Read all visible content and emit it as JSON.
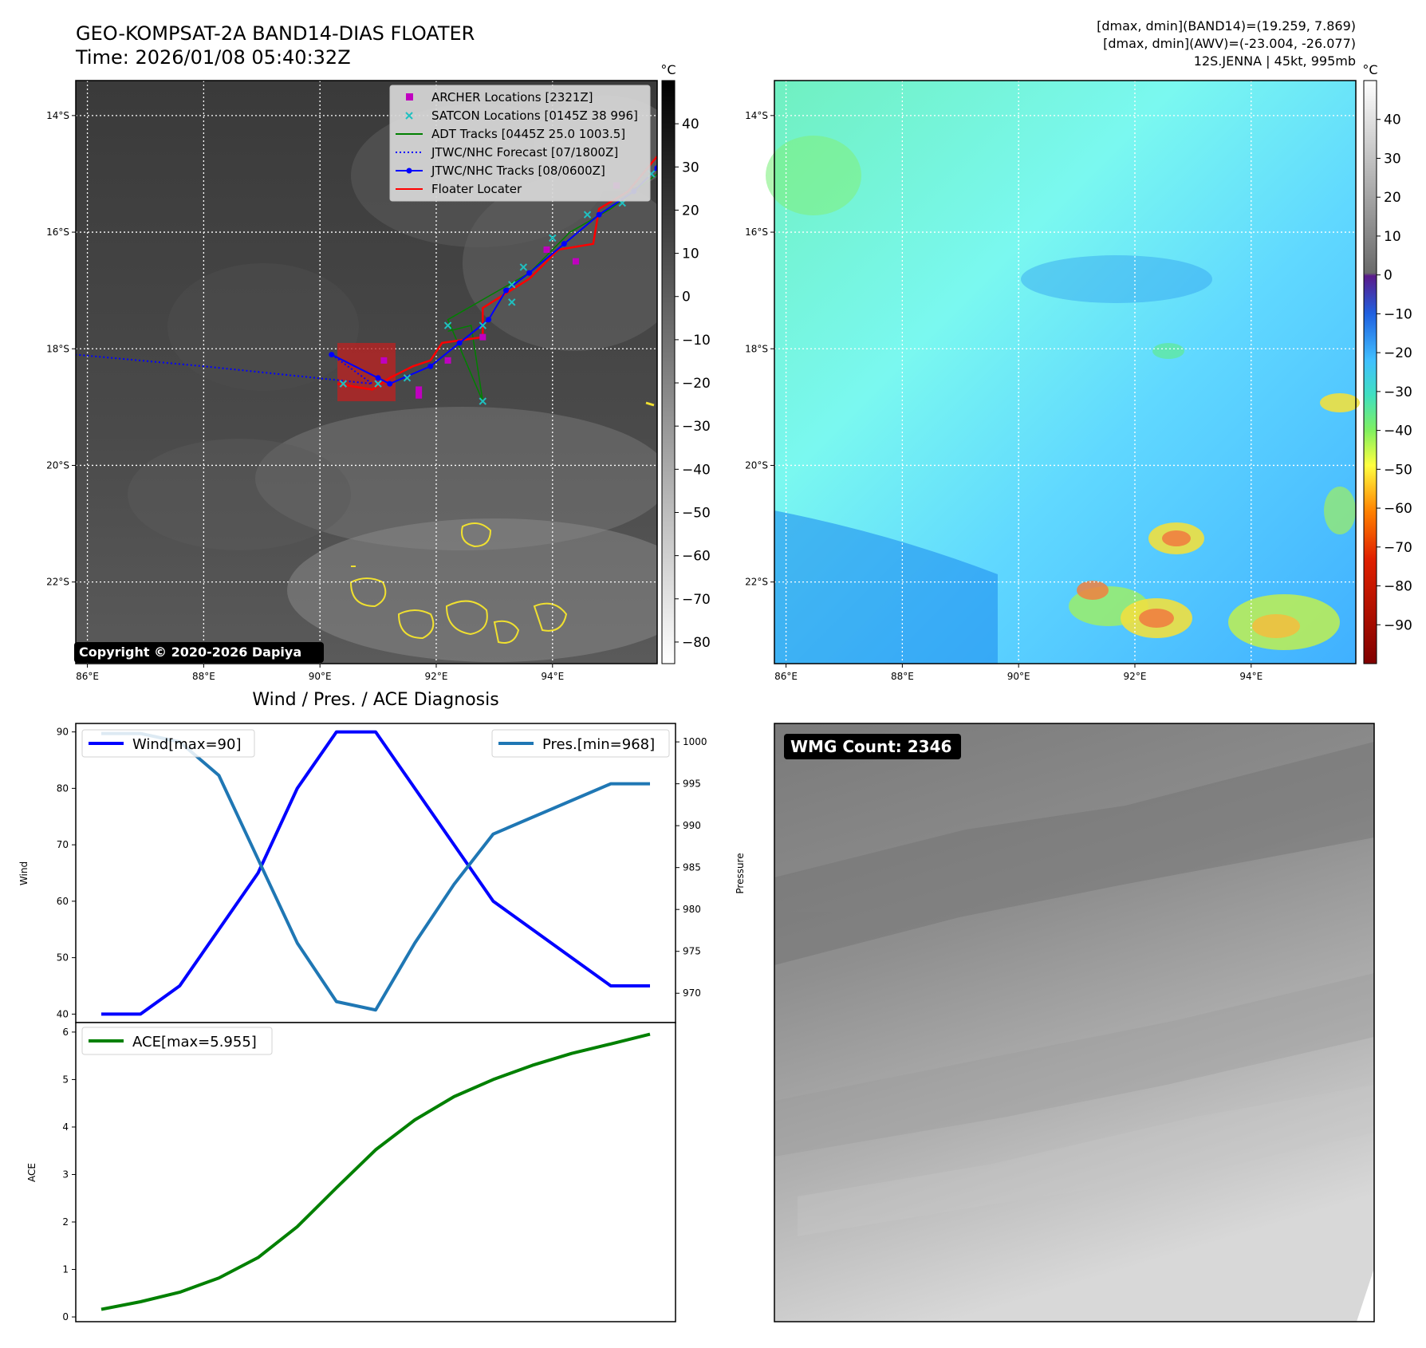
{
  "header": {
    "title_line1": "GEO-KOMPSAT-2A BAND14-DIAS FLOATER",
    "title_line2": "Time: 2026/01/08 05:40:32Z",
    "info_line1": "[dmax, dmin](BAND14)=(19.259, 7.869)",
    "info_line2": "[dmax, dmin](AWV)=(-23.004, -26.077)",
    "info_line3": "12S.JENNA | 45kt, 995mb"
  },
  "map": {
    "lat_labels": [
      "14°S",
      "16°S",
      "18°S",
      "20°S",
      "22°S"
    ],
    "lat_values": [
      -14,
      -16,
      -18,
      -20,
      -22
    ],
    "lon_labels": [
      "86°E",
      "88°E",
      "90°E",
      "92°E",
      "94°E"
    ],
    "lon_values": [
      86,
      88,
      90,
      92,
      94
    ],
    "lon_range": [
      85.8,
      95.8
    ],
    "lat_range": [
      -23.4,
      -13.4
    ],
    "copyright": "Copyright © 2020-2026 Dapiya",
    "legend": [
      {
        "label": "ARCHER Locations [2321Z]",
        "color": "#c000c0",
        "marker": "square"
      },
      {
        "label": "SATCON Locations [0145Z 38 996]",
        "color": "#20c0c0",
        "marker": "x"
      },
      {
        "label": "ADT Tracks [0445Z 25.0 1003.5]",
        "color": "#008000",
        "marker": "line"
      },
      {
        "label": "JTWC/NHC Forecast [07/1800Z]",
        "color": "#0000ff",
        "marker": "dotted"
      },
      {
        "label": "JTWC/NHC Tracks [08/0600Z]",
        "color": "#0000ff",
        "marker": "line-dot"
      },
      {
        "label": "Floater Locater",
        "color": "#ff0000",
        "marker": "line"
      }
    ],
    "jtwc_track": [
      [
        95.8,
        -14.9
      ],
      [
        95.4,
        -15.3
      ],
      [
        94.8,
        -15.7
      ],
      [
        94.2,
        -16.2
      ],
      [
        93.6,
        -16.7
      ],
      [
        93.2,
        -17.0
      ],
      [
        92.9,
        -17.5
      ],
      [
        92.4,
        -17.9
      ],
      [
        91.9,
        -18.3
      ],
      [
        91.2,
        -18.6
      ],
      [
        91.0,
        -18.5
      ],
      [
        90.2,
        -18.1
      ]
    ],
    "jtwc_forecast": [
      [
        90.2,
        -18.1
      ],
      [
        90.9,
        -18.6
      ],
      [
        88.0,
        -18.3
      ],
      [
        85.8,
        -18.1
      ]
    ],
    "floater_track": [
      [
        95.8,
        -14.7
      ],
      [
        95.3,
        -15.3
      ],
      [
        94.8,
        -15.6
      ],
      [
        94.7,
        -16.2
      ],
      [
        94.1,
        -16.3
      ],
      [
        93.6,
        -16.8
      ],
      [
        92.8,
        -17.3
      ],
      [
        92.8,
        -17.8
      ],
      [
        92.1,
        -17.9
      ],
      [
        91.9,
        -18.2
      ],
      [
        91.6,
        -18.3
      ],
      [
        91.2,
        -18.5
      ],
      [
        90.9,
        -18.7
      ],
      [
        90.3,
        -18.6
      ]
    ],
    "archer_points": [
      [
        95.1,
        -15.2
      ],
      [
        93.9,
        -16.3
      ],
      [
        94.4,
        -16.5
      ],
      [
        92.8,
        -17.8
      ],
      [
        91.1,
        -18.2
      ],
      [
        92.2,
        -18.2
      ],
      [
        91.7,
        -18.7
      ],
      [
        91.7,
        -18.8
      ]
    ],
    "satcon_points": [
      [
        95.7,
        -15.0
      ],
      [
        95.2,
        -15.5
      ],
      [
        94.6,
        -15.7
      ],
      [
        94.0,
        -16.1
      ],
      [
        93.5,
        -16.6
      ],
      [
        93.3,
        -16.9
      ],
      [
        93.3,
        -17.2
      ],
      [
        92.8,
        -17.6
      ],
      [
        92.2,
        -17.6
      ],
      [
        91.5,
        -18.5
      ],
      [
        91.0,
        -18.6
      ],
      [
        90.4,
        -18.6
      ],
      [
        92.8,
        -18.9
      ]
    ],
    "adt_track": [
      [
        95.8,
        -15.0
      ],
      [
        95.0,
        -15.6
      ],
      [
        94.3,
        -16.0
      ],
      [
        93.6,
        -16.7
      ],
      [
        92.2,
        -17.5
      ],
      [
        92.8,
        -18.9
      ],
      [
        92.6,
        -17.6
      ],
      [
        92.2,
        -17.7
      ]
    ],
    "floater_box": {
      "lon": [
        90.3,
        91.3
      ],
      "lat": [
        -18.9,
        -17.9
      ]
    }
  },
  "colorbar_gray": {
    "unit": "°C",
    "ticks": [
      40,
      30,
      20,
      10,
      0,
      -10,
      -20,
      -30,
      -40,
      -50,
      -60,
      -70,
      -80
    ],
    "range": [
      -85,
      50
    ]
  },
  "colorbar_color": {
    "unit": "°C",
    "ticks": [
      40,
      30,
      20,
      10,
      0,
      -10,
      -20,
      -30,
      -40,
      -50,
      -60,
      -70,
      -80,
      -90
    ],
    "range": [
      -100,
      50
    ]
  },
  "chart_data": [
    {
      "type": "line",
      "title": "Wind / Pres. / ACE Diagnosis",
      "ylabel": "Wind",
      "y2label": "Pressure",
      "x": [
        0,
        1,
        2,
        3,
        4,
        5,
        6,
        7,
        8,
        9,
        10,
        11,
        12,
        13,
        14
      ],
      "series": [
        {
          "name": "Wind[max=90]",
          "axis": "left",
          "color": "#0000ff",
          "values": [
            40,
            40,
            45,
            55,
            65,
            80,
            90,
            90,
            80,
            70,
            60,
            55,
            50,
            45,
            45
          ]
        },
        {
          "name": "Pres.[min=968]",
          "axis": "right",
          "color": "#1f77b4",
          "values": [
            1001,
            1001,
            1000,
            996,
            986,
            976,
            969,
            968,
            976,
            983,
            989,
            991,
            993,
            995,
            995
          ]
        }
      ],
      "ylim": [
        38.5,
        91.5
      ],
      "y2lim": [
        966.5,
        1002.2
      ],
      "yticks": [
        40,
        50,
        60,
        70,
        80,
        90
      ],
      "y2ticks": [
        970,
        975,
        980,
        985,
        990,
        995,
        1000
      ]
    },
    {
      "type": "line",
      "ylabel": "ACE",
      "x": [
        0,
        1,
        2,
        3,
        4,
        5,
        6,
        7,
        8,
        9,
        10,
        11,
        12,
        13,
        14
      ],
      "series": [
        {
          "name": "ACE[max=5.955]",
          "color": "#008000",
          "values": [
            0.16,
            0.32,
            0.52,
            0.82,
            1.25,
            1.9,
            2.72,
            3.52,
            4.15,
            4.64,
            5.0,
            5.3,
            5.55,
            5.75,
            5.955
          ]
        }
      ],
      "ylim": [
        -0.1,
        6.2
      ],
      "yticks": [
        0,
        1,
        2,
        3,
        4,
        5,
        6
      ]
    }
  ],
  "wmg": {
    "label": "WMG Count: 2346"
  }
}
